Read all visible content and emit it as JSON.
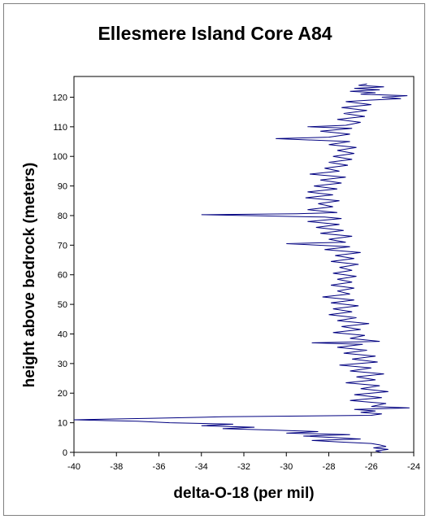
{
  "chart_data": {
    "type": "line",
    "title": "Ellesmere Island Core A84",
    "xlabel": "delta-O-18 (per mil)",
    "ylabel": "height above bedrock (meters)",
    "xlim": [
      -40,
      -24
    ],
    "ylim": [
      0,
      127
    ],
    "xticks": [
      -40,
      -38,
      -36,
      -34,
      -32,
      -30,
      -28,
      -26,
      -24
    ],
    "yticks": [
      0,
      10,
      20,
      30,
      40,
      50,
      60,
      70,
      80,
      90,
      100,
      110,
      120
    ],
    "grid": false,
    "legend": "none",
    "line_color": "#000080",
    "series": [
      {
        "points": [
          [
            -25.5,
            0.0
          ],
          [
            -25.8,
            0.5
          ],
          [
            -25.2,
            1.0
          ],
          [
            -25.9,
            1.5
          ],
          [
            -25.3,
            2.0
          ],
          [
            -25.6,
            2.5
          ],
          [
            -26.0,
            3.0
          ],
          [
            -27.5,
            3.5
          ],
          [
            -28.8,
            4.0
          ],
          [
            -26.5,
            4.5
          ],
          [
            -27.8,
            5.0
          ],
          [
            -29.2,
            5.5
          ],
          [
            -27.0,
            6.0
          ],
          [
            -30.0,
            6.5
          ],
          [
            -28.5,
            7.0
          ],
          [
            -30.5,
            7.5
          ],
          [
            -33.0,
            8.0
          ],
          [
            -31.5,
            8.5
          ],
          [
            -34.0,
            9.0
          ],
          [
            -32.5,
            9.5
          ],
          [
            -35.5,
            10.0
          ],
          [
            -37.0,
            10.5
          ],
          [
            -40.0,
            11.0
          ],
          [
            -36.5,
            11.5
          ],
          [
            -33.0,
            12.0
          ],
          [
            -26.0,
            12.5
          ],
          [
            -25.5,
            13.0
          ],
          [
            -26.5,
            13.5
          ],
          [
            -25.8,
            14.0
          ],
          [
            -26.8,
            14.5
          ],
          [
            -24.2,
            15.0
          ],
          [
            -26.0,
            15.5
          ],
          [
            -25.3,
            16.5
          ],
          [
            -27.0,
            17.5
          ],
          [
            -25.5,
            18.5
          ],
          [
            -26.8,
            19.5
          ],
          [
            -25.2,
            20.5
          ],
          [
            -26.5,
            21.5
          ],
          [
            -25.6,
            22.5
          ],
          [
            -27.2,
            23.5
          ],
          [
            -25.8,
            24.5
          ],
          [
            -26.7,
            25.5
          ],
          [
            -25.4,
            26.5
          ],
          [
            -27.0,
            27.5
          ],
          [
            -26.0,
            28.5
          ],
          [
            -27.5,
            29.5
          ],
          [
            -25.7,
            30.5
          ],
          [
            -26.9,
            31.5
          ],
          [
            -25.8,
            32.5
          ],
          [
            -27.3,
            33.5
          ],
          [
            -26.2,
            34.5
          ],
          [
            -27.6,
            35.5
          ],
          [
            -26.4,
            36.5
          ],
          [
            -28.8,
            37.0
          ],
          [
            -25.6,
            37.5
          ],
          [
            -27.0,
            38.5
          ],
          [
            -26.3,
            39.5
          ],
          [
            -27.8,
            40.5
          ],
          [
            -26.5,
            41.5
          ],
          [
            -27.4,
            42.5
          ],
          [
            -26.1,
            43.5
          ],
          [
            -27.6,
            44.5
          ],
          [
            -26.7,
            45.5
          ],
          [
            -28.0,
            46.5
          ],
          [
            -26.9,
            47.5
          ],
          [
            -27.8,
            48.5
          ],
          [
            -26.6,
            49.5
          ],
          [
            -27.9,
            50.5
          ],
          [
            -26.8,
            51.5
          ],
          [
            -28.3,
            52.5
          ],
          [
            -27.0,
            53.5
          ],
          [
            -27.6,
            54.5
          ],
          [
            -26.8,
            55.5
          ],
          [
            -27.9,
            56.5
          ],
          [
            -26.9,
            57.5
          ],
          [
            -27.6,
            58.5
          ],
          [
            -26.7,
            59.5
          ],
          [
            -27.8,
            60.5
          ],
          [
            -26.9,
            61.5
          ],
          [
            -27.5,
            62.5
          ],
          [
            -26.6,
            63.5
          ],
          [
            -27.9,
            64.5
          ],
          [
            -26.8,
            65.5
          ],
          [
            -27.7,
            66.5
          ],
          [
            -26.5,
            67.5
          ],
          [
            -28.2,
            68.5
          ],
          [
            -27.0,
            69.5
          ],
          [
            -30.0,
            70.5
          ],
          [
            -27.2,
            71.0
          ],
          [
            -28.0,
            72.0
          ],
          [
            -26.9,
            73.0
          ],
          [
            -28.4,
            74.0
          ],
          [
            -27.3,
            75.0
          ],
          [
            -28.6,
            76.0
          ],
          [
            -27.5,
            77.0
          ],
          [
            -29.0,
            78.0
          ],
          [
            -27.4,
            79.0
          ],
          [
            -28.2,
            79.5
          ],
          [
            -34.0,
            80.3
          ],
          [
            -29.5,
            80.6
          ],
          [
            -27.6,
            81.0
          ],
          [
            -29.0,
            82.0
          ],
          [
            -27.8,
            83.0
          ],
          [
            -28.5,
            84.0
          ],
          [
            -27.5,
            85.0
          ],
          [
            -29.1,
            86.0
          ],
          [
            -27.8,
            87.0
          ],
          [
            -29.0,
            88.0
          ],
          [
            -27.6,
            89.0
          ],
          [
            -28.7,
            90.0
          ],
          [
            -27.4,
            91.0
          ],
          [
            -28.4,
            92.0
          ],
          [
            -27.2,
            93.0
          ],
          [
            -28.9,
            94.0
          ],
          [
            -27.5,
            95.0
          ],
          [
            -28.2,
            96.0
          ],
          [
            -27.1,
            97.0
          ],
          [
            -28.0,
            98.0
          ],
          [
            -26.9,
            99.0
          ],
          [
            -27.8,
            100.0
          ],
          [
            -26.8,
            101.0
          ],
          [
            -27.6,
            102.0
          ],
          [
            -26.7,
            103.0
          ],
          [
            -28.0,
            104.0
          ],
          [
            -27.0,
            105.0
          ],
          [
            -30.5,
            106.0
          ],
          [
            -28.0,
            106.5
          ],
          [
            -27.0,
            107.5
          ],
          [
            -28.4,
            108.5
          ],
          [
            -26.9,
            109.5
          ],
          [
            -29.0,
            110.0
          ],
          [
            -27.2,
            110.5
          ],
          [
            -26.5,
            111.5
          ],
          [
            -27.6,
            112.5
          ],
          [
            -26.3,
            113.5
          ],
          [
            -27.3,
            114.5
          ],
          [
            -26.2,
            115.5
          ],
          [
            -27.4,
            116.5
          ],
          [
            -26.0,
            117.5
          ],
          [
            -27.2,
            118.5
          ],
          [
            -26.1,
            119.0
          ],
          [
            -24.6,
            119.5
          ],
          [
            -25.5,
            120.0
          ],
          [
            -24.3,
            120.5
          ],
          [
            -26.5,
            121.0
          ],
          [
            -25.8,
            121.5
          ],
          [
            -27.0,
            122.0
          ],
          [
            -25.6,
            122.5
          ],
          [
            -26.8,
            123.0
          ],
          [
            -25.4,
            123.5
          ],
          [
            -26.6,
            124.0
          ],
          [
            -26.2,
            124.5
          ]
        ]
      }
    ]
  }
}
